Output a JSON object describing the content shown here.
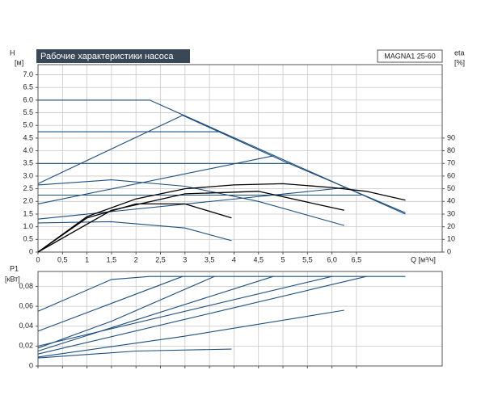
{
  "chart_data": [
    {
      "type": "line",
      "title": "Рабочие характеристики насоса",
      "model": "MAGNA1 25-60",
      "ylabel": "H",
      "yunit": "[м]",
      "y2label": "eta",
      "y2unit": "[%]",
      "xlabel": "Q [м³/ч]",
      "xlim": [
        0,
        8.25
      ],
      "xticks": [
        0,
        {
          "value": 0.5,
          "label": "0,5"
        },
        1,
        {
          "value": 1.5,
          "label": "1,5"
        },
        2,
        {
          "value": 2.5,
          "label": "2,5"
        },
        3,
        {
          "value": 3.5,
          "label": "3,5"
        },
        4,
        {
          "value": 4.5,
          "label": "4,5"
        },
        5,
        {
          "value": 5.5,
          "label": "5,5"
        },
        {
          "value": 6.0,
          "label": "6,0"
        },
        {
          "value": 6.5,
          "label": "6,5"
        }
      ],
      "ylim": [
        0,
        7.4
      ],
      "yticks": [
        0,
        {
          "value": 0.5,
          "label": "0.5"
        },
        {
          "value": 1.0,
          "label": "1.0"
        },
        {
          "value": 1.5,
          "label": "1.5"
        },
        {
          "value": 2.0,
          "label": "2.0"
        },
        {
          "value": 2.5,
          "label": "2.5"
        },
        {
          "value": 3.0,
          "label": "3.0"
        },
        {
          "value": 3.5,
          "label": "3.5"
        },
        {
          "value": 4.0,
          "label": "4.0"
        },
        {
          "value": 4.5,
          "label": "4.5"
        },
        {
          "value": 5.0,
          "label": "5.0"
        },
        {
          "value": 5.5,
          "label": "5.5"
        },
        {
          "value": 6.0,
          "label": "6.0"
        },
        {
          "value": 6.5,
          "label": "6.5"
        },
        {
          "value": 7.0,
          "label": "7.0"
        }
      ],
      "y2lim": [
        0,
        148
      ],
      "y2ticks": [
        0,
        10,
        20,
        30,
        40,
        50,
        60,
        70,
        80,
        90
      ],
      "grid": true,
      "series": [
        {
          "color": "#1c4f80",
          "x": [
            0,
            2.28,
            7.5
          ],
          "values": [
            6.0,
            6.0,
            1.5
          ]
        },
        {
          "color": "#1c4f80",
          "x": [
            0,
            2.95,
            5.0,
            7.5
          ],
          "values": [
            2.7,
            5.4,
            3.6,
            1.55
          ]
        },
        {
          "color": "#1c4f80",
          "x": [
            0,
            4.8
          ],
          "values": [
            1.9,
            3.8
          ]
        },
        {
          "color": "#1c4f80",
          "x": [
            0,
            6.3
          ],
          "values": [
            1.3,
            2.55
          ]
        },
        {
          "color": "#1c4f80",
          "x": [
            0,
            3.73
          ],
          "values": [
            4.75,
            4.75
          ]
        },
        {
          "color": "#1c4f80",
          "x": [
            0,
            5.18
          ],
          "values": [
            3.5,
            3.5
          ]
        },
        {
          "color": "#1c4f80",
          "x": [
            0,
            6.6
          ],
          "values": [
            2.25,
            2.25
          ]
        },
        {
          "color": "#1c4f80",
          "x": [
            0,
            1.5,
            3.0,
            4.5,
            6.25
          ],
          "values": [
            2.65,
            2.85,
            2.6,
            2.0,
            1.05
          ]
        },
        {
          "color": "#1c4f80",
          "x": [
            0,
            1.5,
            3.0,
            3.95
          ],
          "values": [
            1.15,
            1.2,
            0.95,
            0.45
          ]
        },
        {
          "color": "#000000",
          "axis": "y2",
          "x": [
            0,
            1,
            2,
            3,
            4,
            5,
            6,
            6.7,
            7.5
          ],
          "values": [
            0,
            28,
            42,
            50,
            53,
            54,
            51,
            48,
            41
          ]
        },
        {
          "color": "#000000",
          "axis": "y2",
          "x": [
            0,
            1.5,
            3,
            4.5,
            6.25
          ],
          "values": [
            0,
            33,
            46,
            48,
            33
          ]
        },
        {
          "color": "#000000",
          "axis": "y2",
          "x": [
            0,
            1,
            2,
            3,
            3.95
          ],
          "values": [
            0,
            27,
            38,
            38,
            27
          ]
        }
      ]
    },
    {
      "type": "line",
      "ylabel": "P1",
      "yunit": "[кВт]",
      "xlim": [
        0,
        8.25
      ],
      "xticks": [
        0,
        0.5,
        1,
        1.5,
        2,
        2.5,
        3,
        3.5,
        4,
        4.5,
        5,
        5.5,
        6,
        6.5
      ],
      "ylim": [
        0,
        0.095
      ],
      "yticks": [
        0,
        {
          "value": 0.02,
          "label": "0,02"
        },
        {
          "value": 0.04,
          "label": "0,04"
        },
        {
          "value": 0.06,
          "label": "0,06"
        },
        {
          "value": 0.08,
          "label": "0,08"
        }
      ],
      "grid": true,
      "series": [
        {
          "color": "#1c4f80",
          "x": [
            0,
            1.5,
            2.28,
            7.5
          ],
          "values": [
            0.055,
            0.087,
            0.09,
            0.09
          ]
        },
        {
          "color": "#1c4f80",
          "x": [
            0,
            2.95
          ],
          "values": [
            0.035,
            0.09
          ]
        },
        {
          "color": "#1c4f80",
          "x": [
            0,
            1.5,
            3.6
          ],
          "values": [
            0.018,
            0.045,
            0.09
          ]
        },
        {
          "color": "#1c4f80",
          "x": [
            0,
            4.8
          ],
          "values": [
            0.015,
            0.09
          ]
        },
        {
          "color": "#1c4f80",
          "x": [
            0,
            6.0
          ],
          "values": [
            0.02,
            0.09
          ]
        },
        {
          "color": "#1c4f80",
          "x": [
            0,
            6.7
          ],
          "values": [
            0.012,
            0.09
          ]
        },
        {
          "color": "#1c4f80",
          "x": [
            0,
            3.0,
            6.25
          ],
          "values": [
            0.009,
            0.03,
            0.056
          ]
        },
        {
          "color": "#1c4f80",
          "x": [
            0,
            2.0,
            3.95
          ],
          "values": [
            0.008,
            0.015,
            0.017
          ]
        }
      ]
    }
  ]
}
